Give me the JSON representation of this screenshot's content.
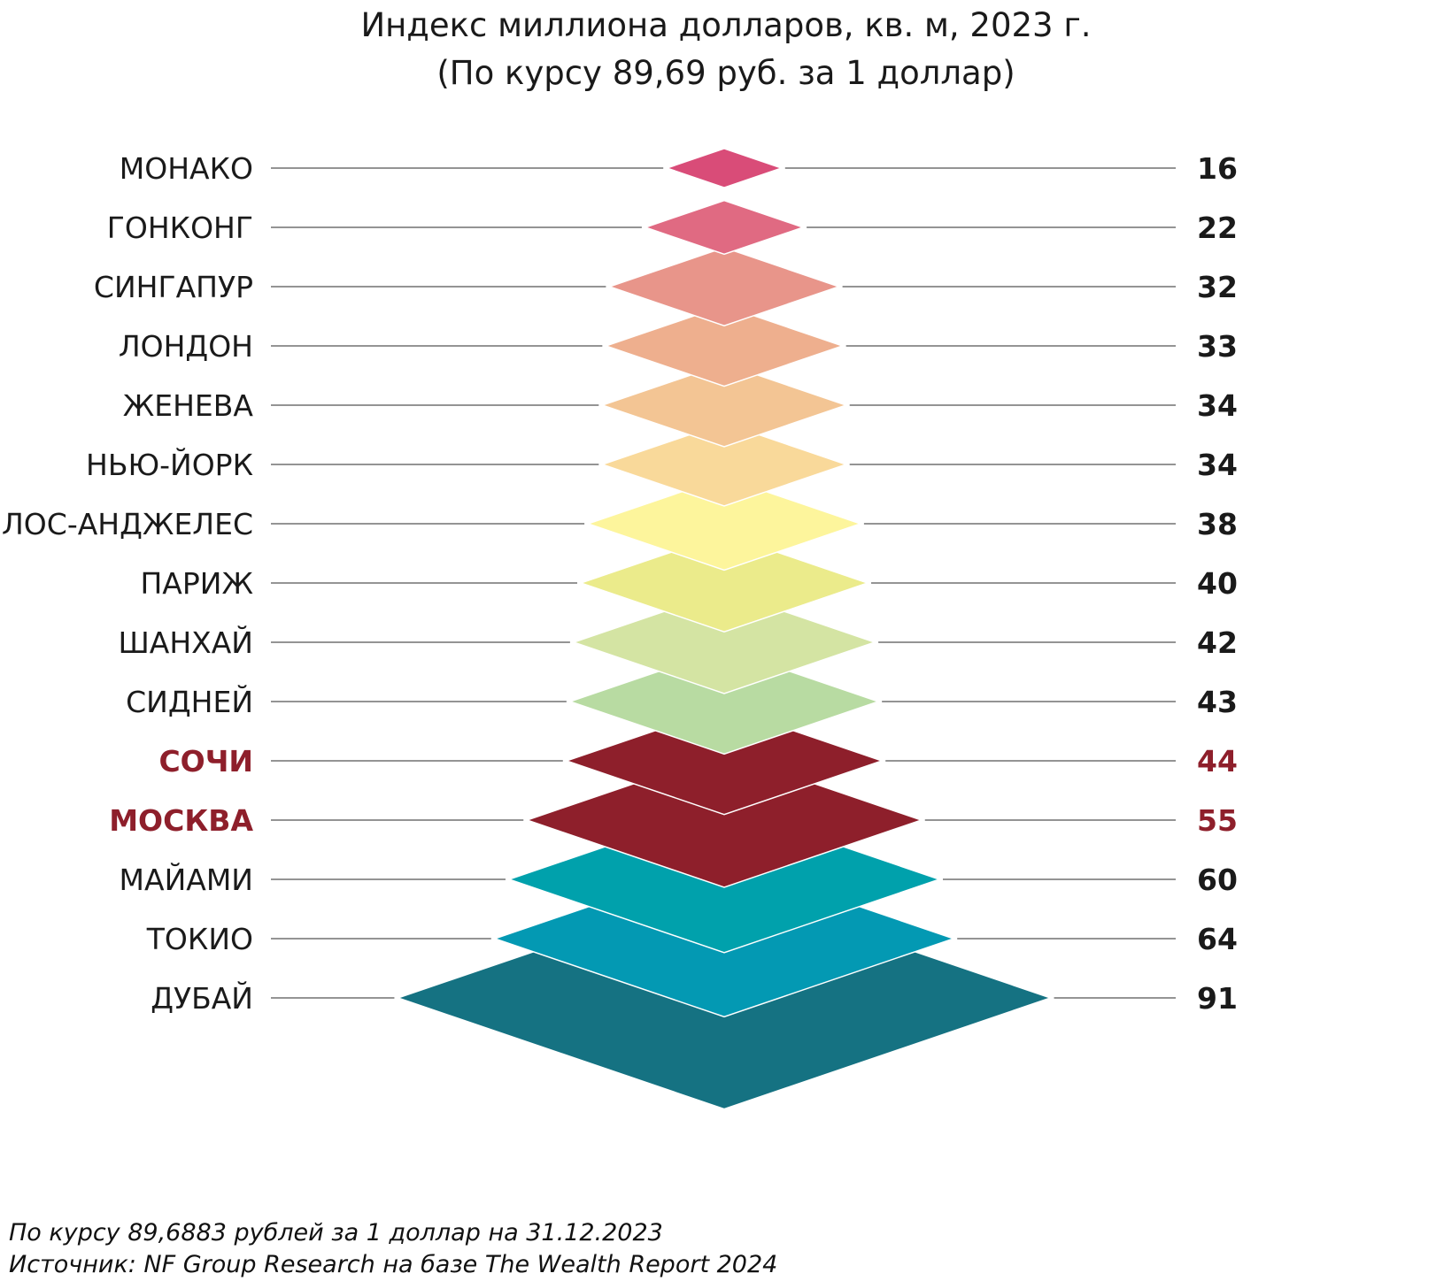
{
  "chart_data": {
    "type": "bar",
    "title": "Индекс миллиона долларов, кв. м, 2023 г.",
    "subtitle": "(По курсу 89,69 руб. за 1 доллар)",
    "categories": [
      "МОНАКО",
      "ГОНКОНГ",
      "СИНГАПУР",
      "ЛОНДОН",
      "ЖЕНЕВА",
      "НЬЮ-ЙОРК",
      "ЛОС-АНДЖЕЛЕС",
      "ПАРИЖ",
      "ШАНХАЙ",
      "СИДНЕЙ",
      "СОЧИ",
      "МОСКВА",
      "МАЙАМИ",
      "ТОКИО",
      "ДУБАЙ"
    ],
    "values": [
      16,
      22,
      32,
      33,
      34,
      34,
      38,
      40,
      42,
      43,
      44,
      55,
      60,
      64,
      91
    ],
    "colors": [
      "#d94c78",
      "#e06a82",
      "#e8958a",
      "#eeaf8e",
      "#f3c594",
      "#f9d99a",
      "#fdf59c",
      "#ebeb8b",
      "#d4e4a3",
      "#b8dba2",
      "#8e1f2b",
      "#8e1f2b",
      "#00a1ac",
      "#0399b3",
      "#157282"
    ],
    "highlighted": [
      "СОЧИ",
      "МОСКВА"
    ],
    "highlight_color": "#8e1f2b"
  },
  "footer": {
    "note": "По курсу 89,6883 рублей за 1 доллар на 31.12.2023",
    "source": "Источник: NF Group Research на базе The Wealth Report 2024"
  }
}
